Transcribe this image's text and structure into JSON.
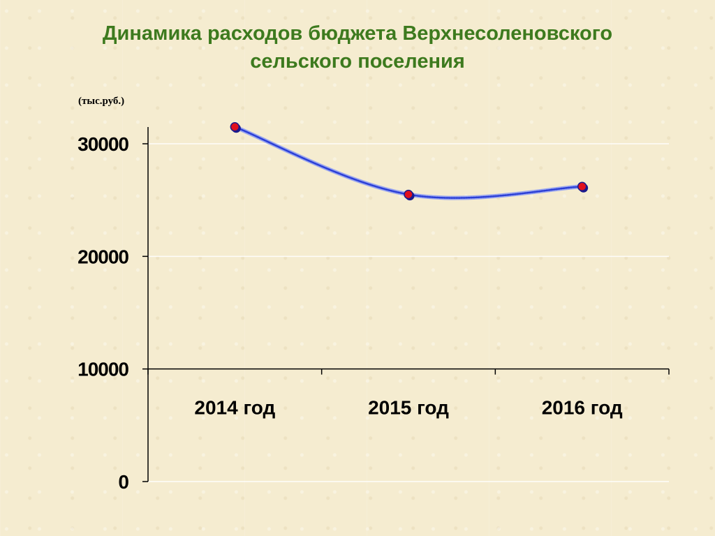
{
  "title_line1": "Динамика расходов бюджета Верхнесоленовского",
  "title_line2": "сельского поселения",
  "unit_label": "(тыс.руб.)",
  "colors": {
    "title": "#3d7a1e",
    "line": "#2b3fd6",
    "marker_fill": "#e0101e",
    "marker_edge": "#1a1a8c",
    "gridline": "#ffffff",
    "background": "#f5ecd0"
  },
  "chart_data": {
    "type": "line",
    "title": "Динамика расходов бюджета Верхнесоленовского сельского поселения",
    "ylabel": "(тыс.руб.)",
    "xlabel": "",
    "categories": [
      "2014 год",
      "2015 год",
      "2016 год"
    ],
    "series": [
      {
        "values": [
          31500,
          25500,
          26200
        ]
      }
    ],
    "ylim": [
      0,
      30000
    ],
    "yticks": [
      0,
      10000,
      20000,
      30000
    ],
    "ytick_labels": [
      "0",
      "10000",
      "20000",
      "30000"
    ],
    "x_axis_crosses_at": 10000,
    "grid": true,
    "legend": "none",
    "smooth": true
  }
}
